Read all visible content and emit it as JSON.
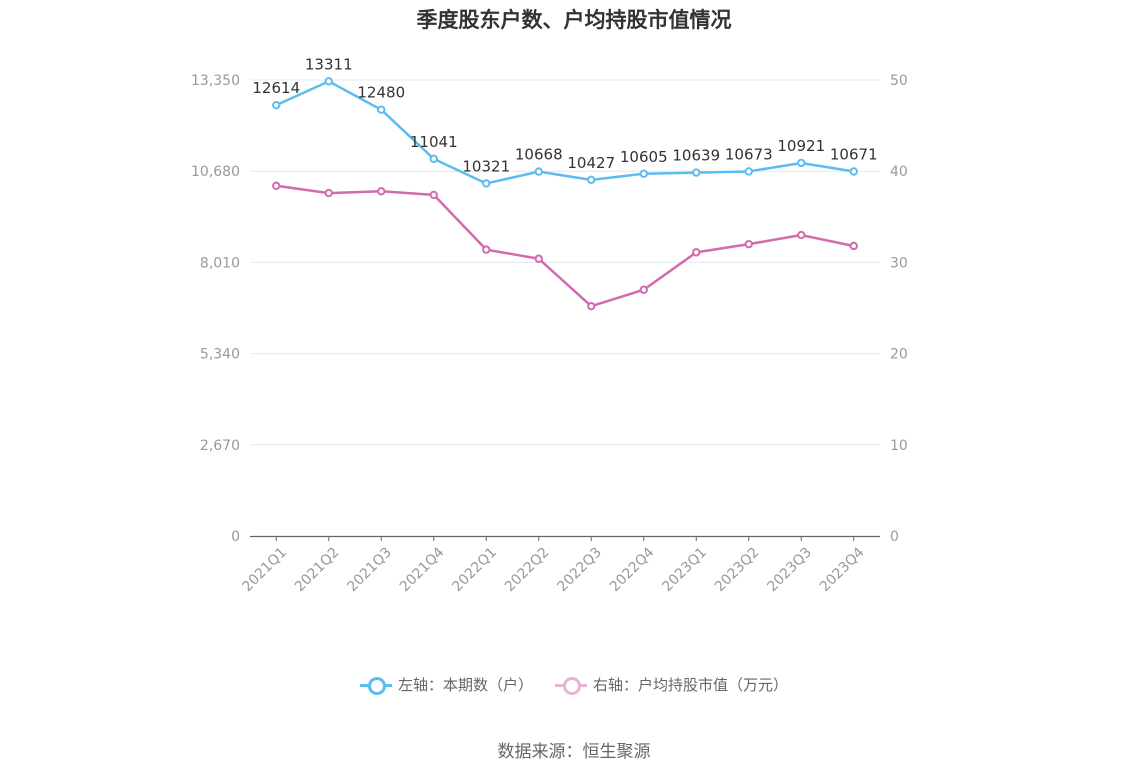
{
  "title": "季度股东户数、户均持股市值情况",
  "source": "数据来源：恒生聚源",
  "legend": [
    {
      "label": "左轴：本期数（户）",
      "color": "#5bbcef"
    },
    {
      "label": "右轴：户均持股市值（万元）",
      "color": "#d36aae"
    }
  ],
  "chart_data": {
    "type": "line",
    "title": "季度股东户数、户均持股市值情况",
    "categories": [
      "2021Q1",
      "2021Q2",
      "2021Q3",
      "2021Q4",
      "2022Q1",
      "2022Q2",
      "2022Q3",
      "2022Q4",
      "2023Q1",
      "2023Q2",
      "2023Q3",
      "2023Q4"
    ],
    "left_axis": {
      "ticks": [
        "0",
        "2,670",
        "5,340",
        "8,010",
        "10,680",
        "13,350"
      ],
      "ylim": [
        0,
        13350
      ]
    },
    "right_axis": {
      "ticks": [
        "0",
        "10",
        "20",
        "30",
        "40",
        "50"
      ],
      "ylim": [
        0,
        50
      ]
    },
    "series": [
      {
        "name": "左轴：本期数（户）",
        "axis": "left",
        "color": "#5bbcef",
        "values": [
          12614,
          13311,
          12480,
          11041,
          10321,
          10668,
          10427,
          10605,
          10639,
          10673,
          10921,
          10671
        ],
        "labels": [
          "12614",
          "13311",
          "12480",
          "11041",
          "10321",
          "10668",
          "10427",
          "10605",
          "10639",
          "10673",
          "10921",
          "10671"
        ]
      },
      {
        "name": "右轴：户均持股市值（万元）",
        "axis": "right",
        "color": "#d36aae",
        "values": [
          38.4,
          37.6,
          37.8,
          37.4,
          31.4,
          30.4,
          25.2,
          27.0,
          31.1,
          32.0,
          33.0,
          31.8
        ]
      }
    ],
    "grid": true
  }
}
